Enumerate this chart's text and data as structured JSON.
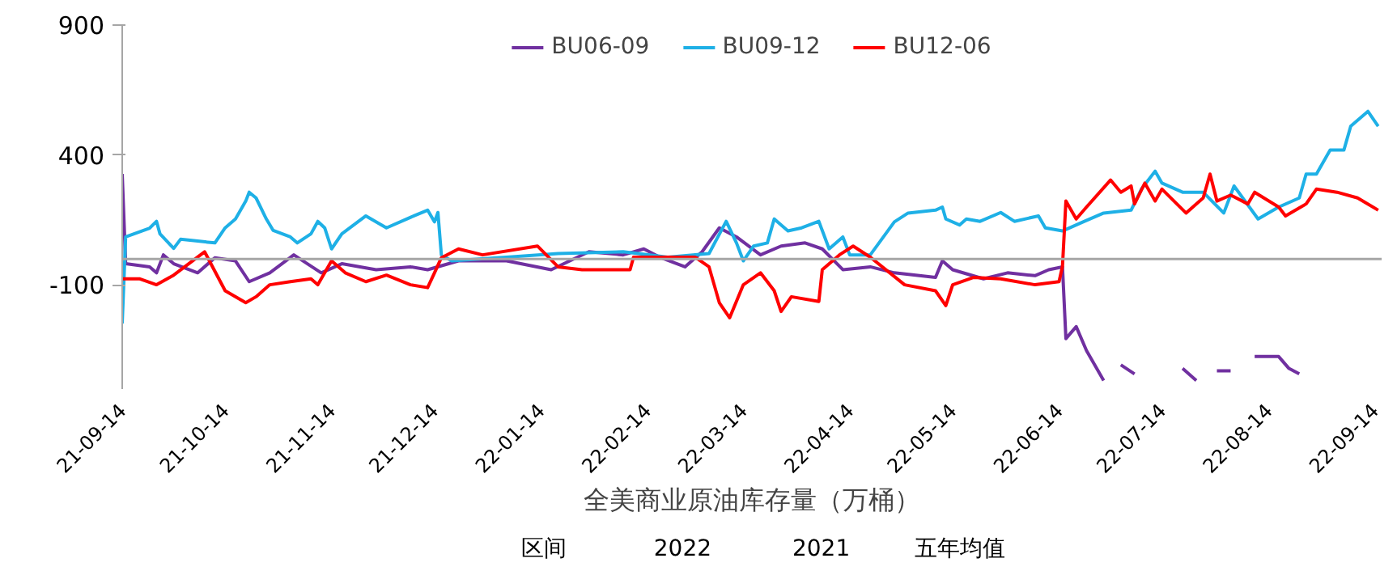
{
  "chart_data": {
    "type": "line",
    "legend": "top",
    "grid": false,
    "line_style": "solid",
    "ylim": [
      -500,
      900
    ],
    "yticks": [
      900,
      400,
      -100
    ],
    "xlim": [
      "2021-09-14",
      "2022-09-16"
    ],
    "xticks": [
      {
        "value": "2021-09-14",
        "label": "21-09-14"
      },
      {
        "value": "2021-10-14",
        "label": "21-10-14"
      },
      {
        "value": "2021-11-14",
        "label": "21-11-14"
      },
      {
        "value": "2021-12-14",
        "label": "21-12-14"
      },
      {
        "value": "2022-01-14",
        "label": "22-01-14"
      },
      {
        "value": "2022-02-14",
        "label": "22-02-14"
      },
      {
        "value": "2022-03-14",
        "label": "22-03-14"
      },
      {
        "value": "2022-04-14",
        "label": "22-04-14"
      },
      {
        "value": "2022-05-14",
        "label": "22-05-14"
      },
      {
        "value": "2022-06-14",
        "label": "22-06-14"
      },
      {
        "value": "2022-07-14",
        "label": "22-07-14"
      },
      {
        "value": "2022-08-14",
        "label": "22-08-14"
      },
      {
        "value": "2022-09-14",
        "label": "22-09-14"
      }
    ],
    "ref_lines": [
      {
        "axis": "y",
        "value": 0,
        "color": "#a6a6a6"
      }
    ],
    "annotations": [
      "全美商业原油库存量（万桶）",
      "区间",
      "2022",
      "2021",
      "五年均值"
    ],
    "series": [
      {
        "name": "BU06-09",
        "color": "#7030a0",
        "x": [
          "2021-09-14",
          "2021-09-15",
          "2021-09-22",
          "2021-09-24",
          "2021-09-26",
          "2021-09-29",
          "2021-10-06",
          "2021-10-11",
          "2021-10-17",
          "2021-10-21",
          "2021-10-27",
          "2021-11-03",
          "2021-11-11",
          "2021-11-17",
          "2021-11-27",
          "2021-12-07",
          "2021-12-12",
          "2021-12-21",
          "2022-01-04",
          "2022-01-17",
          "2022-01-28",
          "2022-02-07",
          "2022-02-13",
          "2022-02-18",
          "2022-02-25",
          "2022-03-02",
          "2022-03-07",
          "2022-03-12",
          "2022-03-19",
          "2022-03-25",
          "2022-04-01",
          "2022-04-06",
          "2022-04-12",
          "2022-04-20",
          "2022-04-27",
          "2022-05-09",
          "2022-05-11",
          "2022-05-14",
          "2022-05-23",
          "2022-05-30",
          "2022-06-07",
          "2022-06-11",
          "2022-06-15",
          "2022-06-16",
          "2022-06-19",
          "2022-06-22",
          "2022-06-27",
          "2022-06-30",
          "2022-07-02",
          "2022-07-06",
          "2022-07-08",
          "2022-07-20",
          "2022-07-24",
          "2022-07-26",
          "2022-07-30",
          "2022-08-03",
          "2022-08-06",
          "2022-08-10",
          "2022-08-17",
          "2022-08-20",
          "2022-08-23"
        ],
        "values": [
          327,
          -18,
          -30,
          -53,
          16,
          -18,
          -53,
          5,
          -7,
          -87,
          -53,
          16,
          -53,
          -18,
          -41,
          -30,
          -41,
          -7,
          -7,
          -41,
          28,
          16,
          39,
          5,
          -30,
          28,
          120,
          85,
          16,
          50,
          62,
          39,
          -41,
          -30,
          -53,
          -71,
          -7,
          -41,
          -76,
          -53,
          -64,
          -41,
          -30,
          -306,
          -260,
          -352,
          -467,
          null,
          -407,
          -442,
          null,
          -421,
          -467,
          null,
          -430,
          -430,
          null,
          -375,
          -375,
          -421,
          -442
        ]
      },
      {
        "name": "BU09-12",
        "color": "#1eb0e6",
        "x": [
          "2021-09-14",
          "2021-09-15",
          "2021-09-22",
          "2021-09-24",
          "2021-09-25",
          "2021-09-29",
          "2021-10-01",
          "2021-10-11",
          "2021-10-14",
          "2021-10-17",
          "2021-10-20",
          "2021-10-21",
          "2021-10-23",
          "2021-10-26",
          "2021-10-28",
          "2021-11-02",
          "2021-11-04",
          "2021-11-08",
          "2021-11-10",
          "2021-11-12",
          "2021-11-14",
          "2021-11-17",
          "2021-11-24",
          "2021-11-30",
          "2021-12-08",
          "2021-12-12",
          "2021-12-14",
          "2021-12-15",
          "2021-12-16",
          "2021-12-19",
          "2022-01-04",
          "2022-01-19",
          "2022-02-07",
          "2022-02-20",
          "2022-03-04",
          "2022-03-09",
          "2022-03-12",
          "2022-03-14",
          "2022-03-17",
          "2022-03-21",
          "2022-03-23",
          "2022-03-27",
          "2022-03-31",
          "2022-04-05",
          "2022-04-08",
          "2022-04-12",
          "2022-04-14",
          "2022-04-20",
          "2022-04-27",
          "2022-05-01",
          "2022-05-09",
          "2022-05-11",
          "2022-05-12",
          "2022-05-16",
          "2022-05-18",
          "2022-05-22",
          "2022-05-28",
          "2022-06-01",
          "2022-06-08",
          "2022-06-10",
          "2022-06-15",
          "2022-06-21",
          "2022-06-27",
          "2022-07-05",
          "2022-07-08",
          "2022-07-12",
          "2022-07-14",
          "2022-07-20",
          "2022-07-26",
          "2022-08-01",
          "2022-08-04",
          "2022-08-11",
          "2022-08-17",
          "2022-08-23",
          "2022-08-25",
          "2022-08-28",
          "2022-09-01",
          "2022-09-05",
          "2022-09-07",
          "2022-09-12",
          "2022-09-15"
        ],
        "values": [
          -248,
          85,
          119,
          145,
          97,
          41,
          76,
          62,
          120,
          154,
          223,
          257,
          235,
          154,
          110,
          85,
          62,
          97,
          145,
          120,
          39,
          97,
          166,
          120,
          166,
          188,
          143,
          179,
          16,
          -7,
          7,
          21,
          28,
          7,
          21,
          145,
          62,
          -7,
          50,
          62,
          154,
          108,
          120,
          145,
          39,
          85,
          16,
          16,
          143,
          177,
          188,
          200,
          154,
          131,
          154,
          145,
          179,
          145,
          166,
          120,
          108,
          143,
          177,
          188,
          269,
          338,
          292,
          257,
          257,
          177,
          281,
          154,
          200,
          235,
          327,
          327,
          419,
          419,
          511,
          568,
          511
        ]
      },
      {
        "name": "BU12-06",
        "color": "#ff0000",
        "x": [
          "2021-09-14",
          "2021-09-19",
          "2021-09-24",
          "2021-09-29",
          "2021-10-08",
          "2021-10-14",
          "2021-10-20",
          "2021-10-23",
          "2021-10-27",
          "2021-11-02",
          "2021-11-08",
          "2021-11-10",
          "2021-11-14",
          "2021-11-18",
          "2021-11-24",
          "2021-11-30",
          "2021-12-07",
          "2021-12-12",
          "2021-12-14",
          "2021-12-16",
          "2021-12-21",
          "2021-12-28",
          "2022-01-13",
          "2022-01-19",
          "2022-01-26",
          "2022-02-09",
          "2022-02-10",
          "2022-02-28",
          "2022-03-04",
          "2022-03-07",
          "2022-03-10",
          "2022-03-14",
          "2022-03-19",
          "2022-03-23",
          "2022-03-25",
          "2022-03-28",
          "2022-04-05",
          "2022-04-06",
          "2022-04-11",
          "2022-04-15",
          "2022-04-20",
          "2022-04-30",
          "2022-05-09",
          "2022-05-12",
          "2022-05-14",
          "2022-05-20",
          "2022-05-28",
          "2022-06-07",
          "2022-06-14",
          "2022-06-15",
          "2022-06-16",
          "2022-06-19",
          "2022-06-22",
          "2022-06-29",
          "2022-07-02",
          "2022-07-05",
          "2022-07-06",
          "2022-07-09",
          "2022-07-12",
          "2022-07-14",
          "2022-07-21",
          "2022-07-26",
          "2022-07-28",
          "2022-07-30",
          "2022-08-03",
          "2022-08-08",
          "2022-08-10",
          "2022-08-17",
          "2022-08-19",
          "2022-08-25",
          "2022-08-28",
          "2022-09-03",
          "2022-09-09",
          "2022-09-15"
        ],
        "values": [
          -76,
          -76,
          -99,
          -62,
          28,
          -122,
          -168,
          -145,
          -99,
          -87,
          -76,
          -99,
          -7,
          -53,
          -87,
          -62,
          -99,
          -110,
          -53,
          5,
          39,
          16,
          50,
          -30,
          -41,
          -41,
          7,
          7,
          -30,
          -168,
          -226,
          -99,
          -53,
          -122,
          -202,
          -145,
          -163,
          -41,
          16,
          50,
          7,
          -99,
          -122,
          -179,
          -99,
          -71,
          -76,
          -99,
          -87,
          -28,
          223,
          154,
          200,
          304,
          257,
          281,
          212,
          292,
          223,
          269,
          177,
          235,
          327,
          223,
          246,
          212,
          257,
          200,
          166,
          212,
          269,
          257,
          235,
          188
        ]
      }
    ]
  }
}
